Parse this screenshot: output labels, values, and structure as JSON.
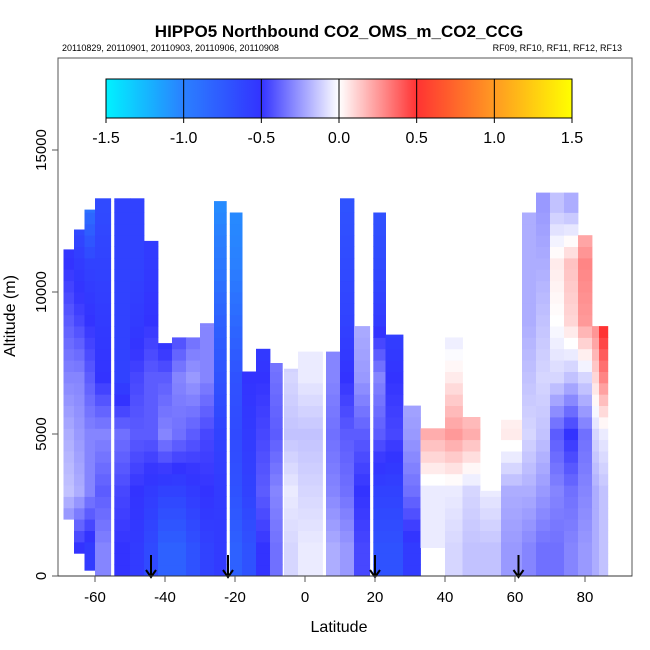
{
  "chart_data": {
    "type": "heatmap",
    "title": "HIPPO5 Northbound CO2_OMS_m_CO2_CCG",
    "subtitle_left": "20110829, 20110901, 20110903, 20110906, 20110908",
    "subtitle_right": "RF09, RF10, RF11, RF12, RF13",
    "xlabel": "Latitude",
    "ylabel": "Altitude (m)",
    "xlim": [
      -70.6,
      93.4
    ],
    "ylim": [
      0,
      18200
    ],
    "xticks": [
      "-60",
      "-40",
      "-20",
      "0",
      "20",
      "40",
      "60",
      "80"
    ],
    "xtick_values": [
      -60,
      -40,
      -20,
      0,
      20,
      40,
      60,
      80
    ],
    "yticks": [
      "0",
      "5000",
      "10000",
      "15000"
    ],
    "ytick_values": [
      0,
      5000,
      10000,
      15000
    ],
    "colorbar": {
      "range": [
        -1.5,
        1.5
      ],
      "ticks": [
        "-1.5",
        "-1.0",
        "-0.5",
        "0.0",
        "0.5",
        "1.0",
        "1.5"
      ],
      "tick_values": [
        -1.5,
        -1.0,
        -0.5,
        0.0,
        0.5,
        1.0,
        1.5
      ],
      "stops": [
        {
          "v": -1.5,
          "c": "#00f2ff"
        },
        {
          "v": -1.0,
          "c": "#2a80ff"
        },
        {
          "v": -0.5,
          "c": "#3333ff"
        },
        {
          "v": 0.0,
          "c": "#ffffff"
        },
        {
          "v": 0.5,
          "c": "#ff3333"
        },
        {
          "v": 1.0,
          "c": "#ff9a22"
        },
        {
          "v": 1.5,
          "c": "#ffff00"
        }
      ]
    },
    "altitude_bins_m": [
      0,
      2000,
      4000,
      6000,
      8000,
      10000,
      12000
    ],
    "columns": [
      {
        "lat": [
          -69,
          -66
        ],
        "bottom": 2000,
        "top": 11500,
        "values": [
          -0.4,
          -0.15,
          -0.2,
          -0.3,
          -0.4,
          -0.5,
          -0.6
        ]
      },
      {
        "lat": [
          -66,
          -63
        ],
        "bottom": 800,
        "top": 12200,
        "values": [
          -0.5,
          -0.2,
          -0.25,
          -0.3,
          -0.45,
          -0.55,
          -0.7
        ]
      },
      {
        "lat": [
          -63,
          -60
        ],
        "bottom": 200,
        "top": 12900,
        "values": [
          -0.55,
          -0.3,
          -0.3,
          -0.4,
          -0.5,
          -0.6,
          -0.9
        ]
      },
      {
        "lat": [
          -60,
          -55.5
        ],
        "bottom": 0,
        "top": 13300,
        "values": [
          -0.3,
          -0.4,
          -0.3,
          -0.5,
          -0.55,
          -0.6,
          -0.65
        ]
      },
      {
        "lat": [
          -54.5,
          -50
        ],
        "bottom": 0,
        "top": 13300,
        "values": [
          -0.5,
          -0.45,
          -0.35,
          -0.6,
          -0.6,
          -0.6,
          -0.6
        ]
      },
      {
        "lat": [
          -50,
          -46
        ],
        "bottom": 0,
        "top": 13300,
        "values": [
          -0.55,
          -0.5,
          -0.4,
          -0.45,
          -0.55,
          -0.6,
          -0.6
        ]
      },
      {
        "lat": [
          -46,
          -42
        ],
        "bottom": 0,
        "top": 11800,
        "values": [
          -0.65,
          -0.55,
          -0.4,
          -0.4,
          -0.5,
          -0.55,
          -0.55
        ]
      },
      {
        "lat": [
          -42,
          -38
        ],
        "bottom": 0,
        "top": 8200,
        "values": [
          -0.8,
          -0.6,
          -0.3,
          -0.4,
          -0.6,
          -0.5,
          -0.5
        ]
      },
      {
        "lat": [
          -38,
          -34
        ],
        "bottom": 0,
        "top": 8400,
        "values": [
          -0.8,
          -0.6,
          -0.35,
          -0.3,
          -0.5,
          -0.5,
          -0.5
        ]
      },
      {
        "lat": [
          -34,
          -30
        ],
        "bottom": 0,
        "top": 8400,
        "values": [
          -0.7,
          -0.55,
          -0.4,
          -0.25,
          -0.4,
          -0.4,
          -0.4
        ]
      },
      {
        "lat": [
          -30,
          -26
        ],
        "bottom": 0,
        "top": 8900,
        "values": [
          -0.6,
          -0.5,
          -0.45,
          -0.3,
          -0.3,
          -0.3,
          -0.3
        ]
      },
      {
        "lat": [
          -26,
          -22.5
        ],
        "bottom": 0,
        "top": 13200,
        "values": [
          -0.55,
          -0.55,
          -0.6,
          -0.7,
          -0.8,
          -0.95,
          -1.05
        ]
      },
      {
        "lat": [
          -21.5,
          -18
        ],
        "bottom": 0,
        "top": 12800,
        "values": [
          -0.8,
          -0.7,
          -0.65,
          -0.7,
          -0.85,
          -1.0,
          -1.05
        ]
      },
      {
        "lat": [
          -18,
          -14
        ],
        "bottom": 0,
        "top": 7200,
        "values": [
          -0.7,
          -0.6,
          -0.55,
          -0.5,
          -0.5,
          -0.5,
          -0.5
        ]
      },
      {
        "lat": [
          -14,
          -10
        ],
        "bottom": 0,
        "top": 8000,
        "values": [
          -0.5,
          -0.4,
          -0.45,
          -0.5,
          -0.6,
          -0.6,
          -0.6
        ]
      },
      {
        "lat": [
          -10,
          -6.5
        ],
        "bottom": 0,
        "top": 7500,
        "values": [
          -0.35,
          -0.3,
          -0.4,
          -0.35,
          -0.3,
          -0.3,
          -0.3
        ]
      },
      {
        "lat": [
          -6,
          -2
        ],
        "bottom": 0,
        "top": 7300,
        "values": [
          -0.1,
          -0.05,
          -0.15,
          -0.1,
          -0.15,
          -0.15,
          -0.15
        ]
      },
      {
        "lat": [
          -2,
          5
        ],
        "bottom": 0,
        "top": 7900,
        "values": [
          -0.05,
          -0.1,
          -0.15,
          -0.05,
          -0.05,
          -0.05,
          -0.05
        ]
      },
      {
        "lat": [
          6,
          10
        ],
        "bottom": 0,
        "top": 7900,
        "values": [
          -0.2,
          -0.3,
          -0.35,
          -0.3,
          -0.3,
          -0.3,
          -0.3
        ]
      },
      {
        "lat": [
          10,
          14
        ],
        "bottom": 0,
        "top": 13300,
        "values": [
          -0.25,
          -0.35,
          -0.4,
          -0.5,
          -0.6,
          -0.65,
          -0.7
        ]
      },
      {
        "lat": [
          14,
          18.5
        ],
        "bottom": 0,
        "top": 8800,
        "values": [
          -0.45,
          -0.5,
          -0.4,
          -0.25,
          -0.2,
          -0.2,
          -0.2
        ]
      },
      {
        "lat": [
          19.5,
          23
        ],
        "bottom": 0,
        "top": 12800,
        "values": [
          -0.7,
          -0.6,
          -0.4,
          -0.3,
          -0.55,
          -0.65,
          -0.7
        ]
      },
      {
        "lat": [
          23,
          28
        ],
        "bottom": 0,
        "top": 8500,
        "values": [
          -0.7,
          -0.6,
          -0.45,
          -0.5,
          -0.6,
          -0.6,
          -0.6
        ]
      },
      {
        "lat": [
          28,
          33
        ],
        "bottom": 0,
        "top": 6000,
        "values": [
          -0.55,
          -0.35,
          -0.25,
          -0.2,
          -0.2,
          -0.2,
          -0.2
        ]
      },
      {
        "lat": [
          33,
          40
        ],
        "bottom": 1000,
        "top": 5200,
        "values": [
          -0.05,
          -0.05,
          0.2,
          0.15,
          0.1,
          0.1,
          0.1
        ]
      },
      {
        "lat": [
          40,
          45
        ],
        "bottom": 0,
        "top": 8400,
        "values": [
          -0.1,
          -0.05,
          0.25,
          0.05,
          -0.1,
          -0.15,
          -0.15
        ]
      },
      {
        "lat": [
          45,
          50
        ],
        "bottom": 0,
        "top": 5600,
        "values": [
          -0.15,
          -0.1,
          0.2,
          0.05,
          0.0,
          0.0,
          0.0
        ]
      },
      {
        "lat": [
          50,
          56
        ],
        "bottom": 0,
        "top": 3000,
        "values": [
          -0.15,
          -0.05,
          0.0,
          0.0,
          0.0,
          0.0,
          0.0
        ]
      },
      {
        "lat": [
          56,
          62
        ],
        "bottom": 0,
        "top": 5500,
        "values": [
          -0.25,
          -0.2,
          0.05,
          0.0,
          0.0,
          0.0,
          0.0
        ]
      },
      {
        "lat": [
          62,
          66
        ],
        "bottom": 0,
        "top": 12800,
        "values": [
          -0.3,
          -0.2,
          -0.1,
          -0.15,
          -0.2,
          -0.2,
          -0.2
        ]
      },
      {
        "lat": [
          66,
          70
        ],
        "bottom": 0,
        "top": 13500,
        "values": [
          -0.35,
          -0.25,
          -0.15,
          -0.1,
          -0.15,
          -0.2,
          -0.25
        ]
      },
      {
        "lat": [
          70,
          74
        ],
        "bottom": 0,
        "top": 13500,
        "values": [
          -0.35,
          -0.3,
          -0.4,
          -0.1,
          0.0,
          0.05,
          -0.15
        ]
      },
      {
        "lat": [
          74,
          78
        ],
        "bottom": 0,
        "top": 13500,
        "values": [
          -0.3,
          -0.35,
          -0.5,
          -0.15,
          0.1,
          0.15,
          -0.2
        ]
      },
      {
        "lat": [
          78,
          82
        ],
        "bottom": 0,
        "top": 12000,
        "values": [
          -0.25,
          -0.3,
          -0.35,
          -0.1,
          0.25,
          0.3,
          0.1
        ]
      },
      {
        "lat": [
          82,
          84
        ],
        "bottom": 0,
        "top": 8800,
        "values": [
          -0.2,
          -0.2,
          -0.1,
          0.1,
          0.3,
          0.0,
          0.0
        ]
      },
      {
        "lat": [
          84,
          86.5
        ],
        "bottom": 0,
        "top": 8800,
        "values": [
          -0.15,
          -0.15,
          -0.05,
          0.3,
          0.55,
          0.0,
          0.0
        ]
      }
    ],
    "arrow_latitudes": [
      -44,
      -22,
      20,
      61
    ]
  }
}
